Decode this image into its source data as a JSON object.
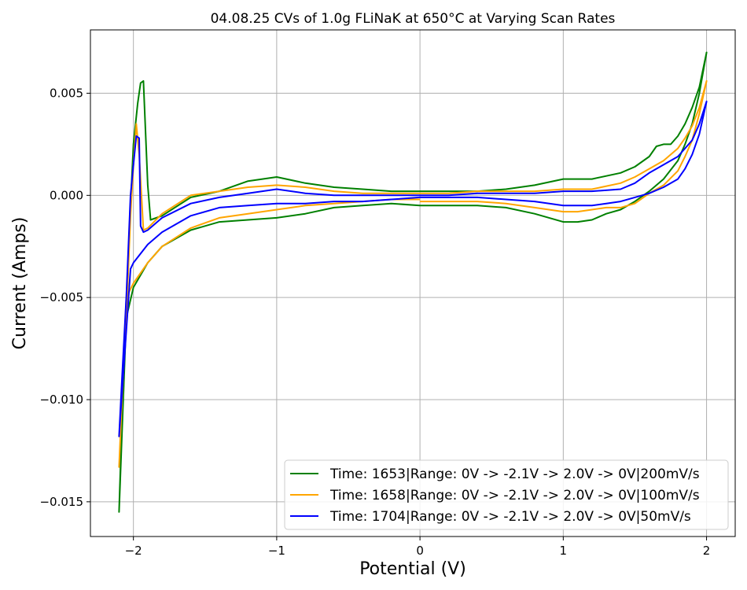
{
  "chart_data": {
    "type": "line",
    "title": "04.08.25 CVs of 1.0g FLiNaK at 650°C at Varying Scan Rates",
    "xlabel": "Potential (V)",
    "ylabel": "Current (Amps)",
    "xlim": [
      -2.3,
      2.2
    ],
    "ylim": [
      -0.0167,
      0.0081
    ],
    "xticks": [
      -2,
      -1,
      0,
      1,
      2
    ],
    "xtick_labels": [
      "−2",
      "−1",
      "0",
      "1",
      "2"
    ],
    "yticks": [
      -0.015,
      -0.01,
      -0.005,
      0.0,
      0.005
    ],
    "ytick_labels": [
      "−0.015",
      "−0.010",
      "−0.005",
      "0.000",
      "0.005"
    ],
    "grid": true,
    "legend_position": "lower-right",
    "series": [
      {
        "name": "Time: 1653|Range: 0V -> -2.1V -> 2.0V -> 0V|200mV/s",
        "color": "#008000",
        "x": [
          0,
          -0.2,
          -0.4,
          -0.6,
          -0.8,
          -1.0,
          -1.2,
          -1.4,
          -1.6,
          -1.8,
          -1.9,
          -2.0,
          -2.05,
          -2.1,
          -2.08,
          -2.05,
          -2.02,
          -2.0,
          -1.97,
          -1.95,
          -1.93,
          -1.9,
          -1.88,
          -1.8,
          -1.6,
          -1.4,
          -1.2,
          -1.1,
          -1.0,
          -0.8,
          -0.6,
          -0.4,
          -0.2,
          0,
          0.2,
          0.4,
          0.6,
          0.8,
          1.0,
          1.2,
          1.4,
          1.5,
          1.6,
          1.65,
          1.7,
          1.75,
          1.8,
          1.85,
          1.9,
          1.95,
          2.0,
          1.95,
          1.9,
          1.85,
          1.8,
          1.7,
          1.6,
          1.5,
          1.4,
          1.3,
          1.2,
          1.1,
          1.0,
          0.8,
          0.6,
          0.4,
          0.2,
          0.0
        ],
        "y": [
          -0.0005,
          -0.0004,
          -0.0005,
          -0.0006,
          -0.0009,
          -0.0011,
          -0.0012,
          -0.0013,
          -0.0017,
          -0.0025,
          -0.0033,
          -0.0045,
          -0.006,
          -0.0155,
          -0.011,
          -0.006,
          -0.0005,
          0.0025,
          0.0045,
          0.0055,
          0.0056,
          0.0005,
          -0.0012,
          -0.001,
          -0.0001,
          0.0002,
          0.0007,
          0.0008,
          0.0009,
          0.0006,
          0.0004,
          0.0003,
          0.0002,
          0.0002,
          0.0002,
          0.0002,
          0.0003,
          0.0005,
          0.0008,
          0.0008,
          0.0011,
          0.0014,
          0.0019,
          0.0024,
          0.0025,
          0.0025,
          0.0029,
          0.0035,
          0.0043,
          0.0053,
          0.007,
          0.005,
          0.0035,
          0.0025,
          0.0017,
          0.0008,
          0.0002,
          -0.0003,
          -0.0007,
          -0.0009,
          -0.0012,
          -0.0013,
          -0.0013,
          -0.0009,
          -0.0006,
          -0.0005,
          -0.0005,
          -0.0005
        ]
      },
      {
        "name": "Time: 1658|Range: 0V -> -2.1V -> 2.0V -> 0V|100mV/s",
        "color": "#FFA500",
        "x": [
          0,
          -0.2,
          -0.4,
          -0.6,
          -0.8,
          -1.0,
          -1.2,
          -1.4,
          -1.6,
          -1.8,
          -1.9,
          -2.0,
          -2.05,
          -2.1,
          -2.08,
          -2.05,
          -2.02,
          -2.0,
          -1.98,
          -1.96,
          -1.93,
          -1.9,
          -1.8,
          -1.6,
          -1.4,
          -1.2,
          -1.0,
          -0.8,
          -0.6,
          -0.4,
          -0.2,
          0,
          0.2,
          0.4,
          0.6,
          0.8,
          1.0,
          1.2,
          1.4,
          1.5,
          1.6,
          1.7,
          1.8,
          1.85,
          1.9,
          1.95,
          2.0,
          1.95,
          1.9,
          1.85,
          1.8,
          1.7,
          1.6,
          1.5,
          1.4,
          1.3,
          1.2,
          1.1,
          1.0,
          0.8,
          0.6,
          0.4,
          0.2,
          0.0
        ],
        "y": [
          -0.0002,
          -0.0002,
          -0.0003,
          -0.0004,
          -0.0005,
          -0.0007,
          -0.0009,
          -0.0011,
          -0.0016,
          -0.0025,
          -0.0033,
          -0.0043,
          -0.005,
          -0.0133,
          -0.01,
          -0.006,
          -0.001,
          0.0015,
          0.0035,
          0.002,
          -0.0017,
          -0.0016,
          -0.0009,
          0.0,
          0.0002,
          0.0004,
          0.0005,
          0.0004,
          0.0002,
          0.0001,
          0.0001,
          0.0001,
          0.0001,
          0.0002,
          0.0002,
          0.0002,
          0.0003,
          0.0003,
          0.0006,
          0.0009,
          0.0013,
          0.0017,
          0.0023,
          0.0028,
          0.0034,
          0.0043,
          0.0056,
          0.004,
          0.0027,
          0.0019,
          0.0012,
          0.0005,
          0.0001,
          -0.0004,
          -0.0006,
          -0.0006,
          -0.0007,
          -0.0008,
          -0.0008,
          -0.0006,
          -0.0004,
          -0.0003,
          -0.0003,
          -0.0003
        ]
      },
      {
        "name": "Time: 1704|Range: 0V -> -2.1V -> 2.0V -> 0V|50mV/s",
        "color": "#0000FF",
        "x": [
          0,
          -0.2,
          -0.4,
          -0.6,
          -0.8,
          -1.0,
          -1.2,
          -1.4,
          -1.6,
          -1.8,
          -1.9,
          -2.0,
          -2.02,
          -2.1,
          -2.08,
          -2.05,
          -2.02,
          -2.0,
          -1.98,
          -1.96,
          -1.95,
          -1.93,
          -1.9,
          -1.8,
          -1.6,
          -1.4,
          -1.2,
          -1.0,
          -0.8,
          -0.6,
          -0.4,
          -0.2,
          0,
          0.2,
          0.4,
          0.6,
          0.8,
          1.0,
          1.2,
          1.4,
          1.5,
          1.6,
          1.7,
          1.8,
          1.85,
          1.9,
          1.95,
          2.0,
          1.95,
          1.9,
          1.85,
          1.8,
          1.7,
          1.6,
          1.5,
          1.4,
          1.3,
          1.2,
          1.1,
          1.0,
          0.8,
          0.6,
          0.4,
          0.2,
          0.0
        ],
        "y": [
          -0.0001,
          -0.0002,
          -0.0003,
          -0.0003,
          -0.0004,
          -0.0004,
          -0.0005,
          -0.0006,
          -0.001,
          -0.0018,
          -0.0024,
          -0.0033,
          -0.0036,
          -0.0118,
          -0.009,
          -0.005,
          0.0,
          0.0015,
          0.0029,
          0.0028,
          -0.0015,
          -0.0018,
          -0.0017,
          -0.0011,
          -0.0004,
          -0.0001,
          0.0001,
          0.0003,
          0.0001,
          0.0,
          0.0,
          0.0,
          0.0,
          0.0,
          0.0001,
          0.0001,
          0.0001,
          0.0002,
          0.0002,
          0.0003,
          0.0006,
          0.0011,
          0.0015,
          0.0019,
          0.0023,
          0.0027,
          0.0035,
          0.0046,
          0.003,
          0.002,
          0.0013,
          0.0008,
          0.0004,
          0.0001,
          -0.0001,
          -0.0003,
          -0.0004,
          -0.0005,
          -0.0005,
          -0.0005,
          -0.0003,
          -0.0002,
          -0.0001,
          -0.0001,
          -0.0001
        ]
      }
    ]
  }
}
